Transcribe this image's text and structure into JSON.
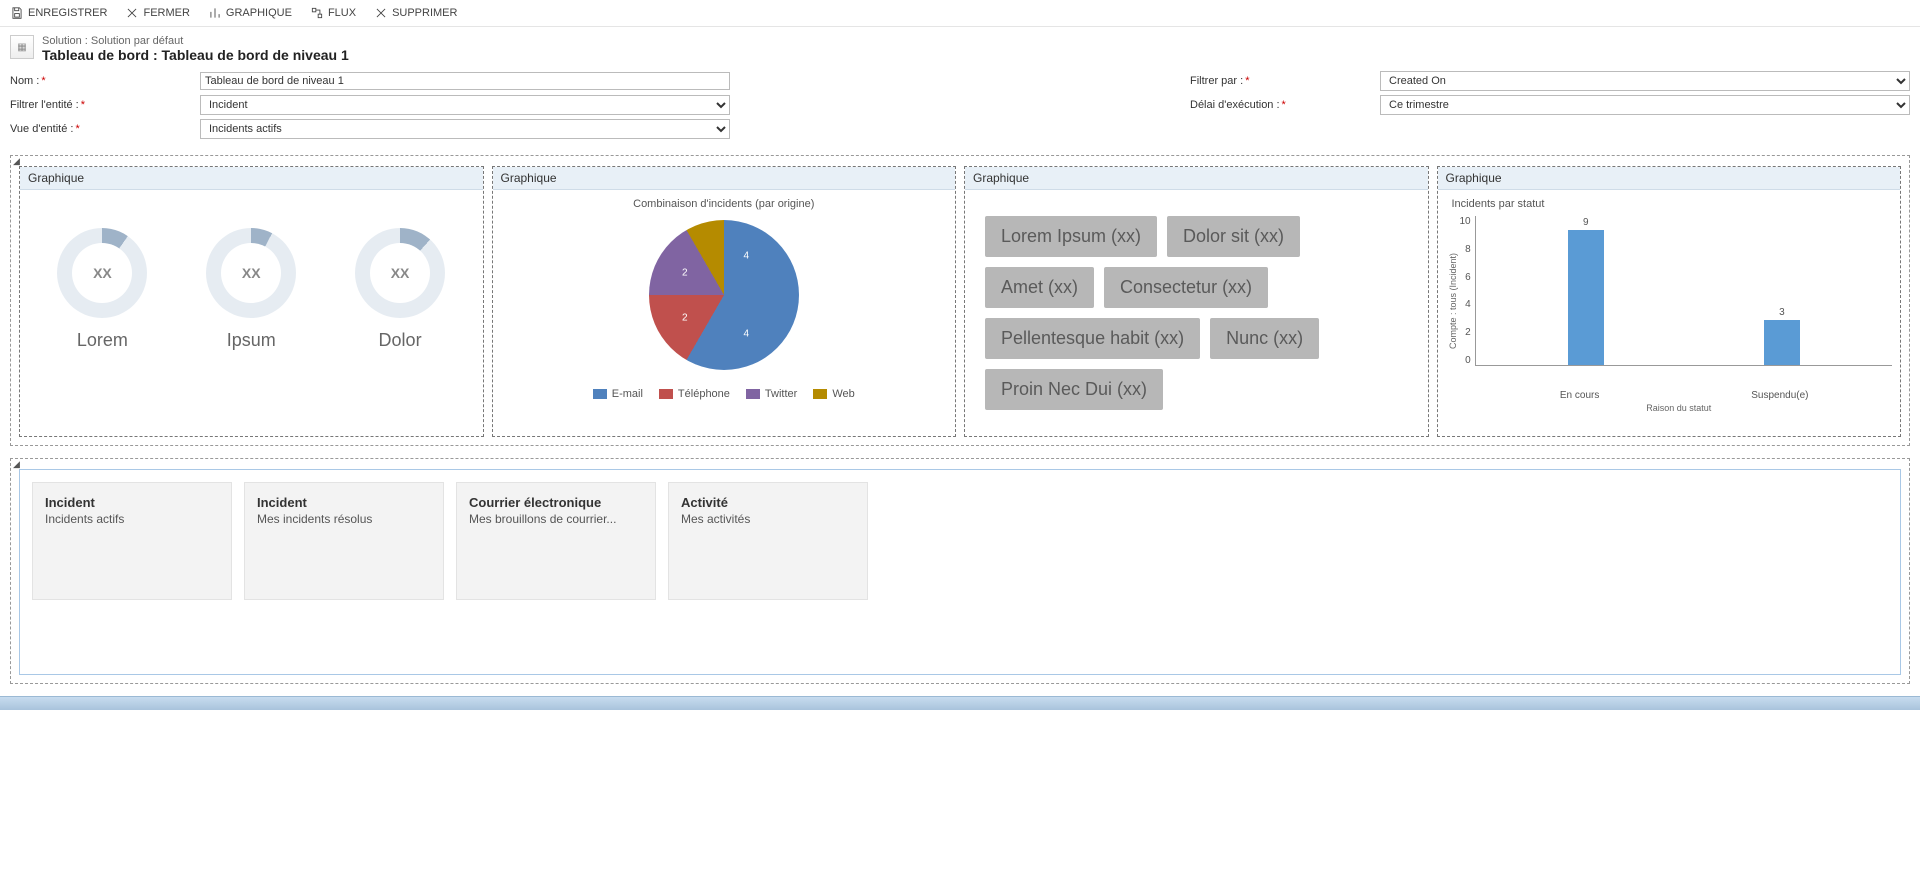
{
  "toolbar": {
    "save": "ENREGISTRER",
    "close": "FERMER",
    "chart": "GRAPHIQUE",
    "flow": "FLUX",
    "delete": "SUPPRIMER"
  },
  "header": {
    "solution_line": "Solution : Solution par défaut",
    "title": "Tableau de bord : Tableau de bord de niveau 1"
  },
  "form": {
    "name_label": "Nom :",
    "name_value": "Tableau de bord de niveau 1",
    "filter_entity_label": "Filtrer l'entité :",
    "filter_entity_value": "Incident",
    "entity_view_label": "Vue d'entité :",
    "entity_view_value": "Incidents actifs",
    "filter_by_label": "Filtrer par :",
    "filter_by_value": "Created On",
    "time_frame_label": "Délai d'exécution :",
    "time_frame_value": "Ce trimestre"
  },
  "panels": {
    "title_generic": "Graphique",
    "donuts": {
      "items": [
        {
          "value": "XX",
          "label": "Lorem",
          "arc_deg": 35
        },
        {
          "value": "XX",
          "label": "Ipsum",
          "arc_deg": 28
        },
        {
          "value": "XX",
          "label": "Dolor",
          "arc_deg": 42
        }
      ],
      "ring_fg": "#9fb3c8",
      "ring_bg": "#e6ecf2",
      "text_color": "#888888"
    },
    "pie": {
      "title": "Combinaison d'incidents (par origine)",
      "slices": [
        {
          "label": "E-mail",
          "value": 4,
          "color": "#4f81bd"
        },
        {
          "label": "Téléphone",
          "value": 2,
          "color": "#c0504d"
        },
        {
          "label": "Twitter",
          "value": 2,
          "color": "#8064a2"
        },
        {
          "label": "Web",
          "value": 4,
          "color": "#b58b00"
        }
      ]
    },
    "tags": {
      "items": [
        "Lorem Ipsum (xx)",
        "Dolor sit (xx)",
        "Amet (xx)",
        "Consectetur  (xx)",
        "Pellentesque habit  (xx)",
        "Nunc (xx)",
        "Proin Nec Dui (xx)"
      ],
      "bg": "#b7b7b7",
      "fg": "#5a5a5a"
    },
    "bar": {
      "title": "Incidents par statut",
      "y_label": "Compte : tous (Incident)",
      "x_label": "Raison du statut",
      "ymax": 10,
      "ytick_step": 2,
      "bar_color": "#5a9bd5",
      "bars": [
        {
          "category": "En cours",
          "value": 9
        },
        {
          "category": "Suspendu(e)",
          "value": 3
        }
      ]
    }
  },
  "cards": [
    {
      "title": "Incident",
      "subtitle": "Incidents actifs"
    },
    {
      "title": "Incident",
      "subtitle": "Mes incidents résolus"
    },
    {
      "title": "Courrier électronique",
      "subtitle": "Mes brouillons de courrier..."
    },
    {
      "title": "Activité",
      "subtitle": "Mes activités"
    }
  ]
}
